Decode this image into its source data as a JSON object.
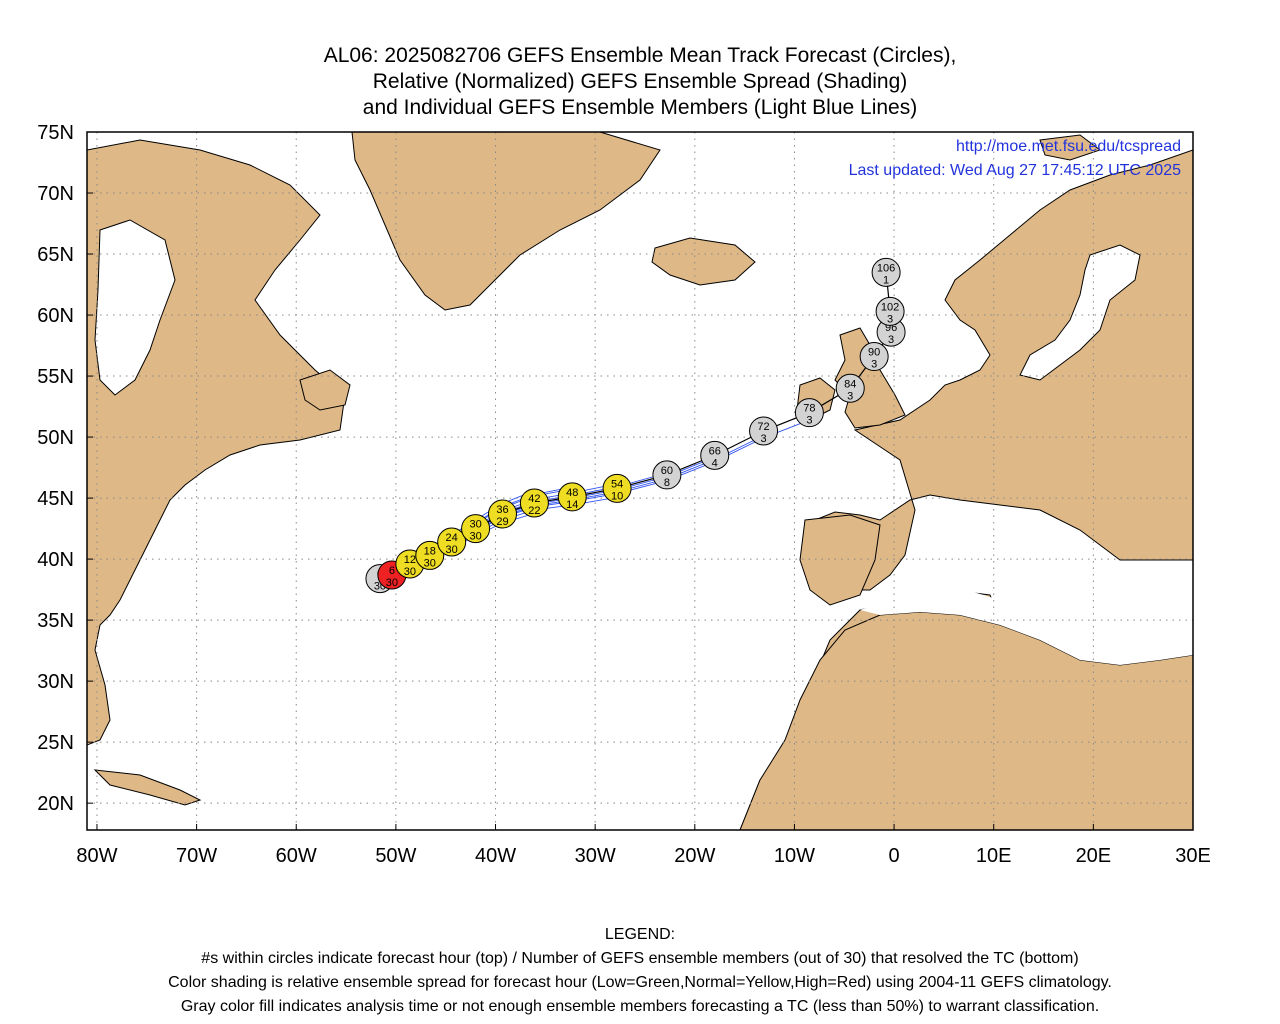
{
  "title": {
    "line1": "AL06: 2025082706 GEFS Ensemble Mean Track Forecast (Circles),",
    "line2": "Relative (Normalized) GEFS Ensemble Spread (Shading)",
    "line3": "and Individual GEFS Ensemble Members (Light Blue Lines)"
  },
  "info": {
    "url": "http://moe.met.fsu.edu/tcspread",
    "updated": "Last updated: Wed Aug 27 17:45:12 UTC 2025"
  },
  "axes": {
    "lat_labels": [
      "75N",
      "70N",
      "65N",
      "60N",
      "55N",
      "50N",
      "45N",
      "40N",
      "35N",
      "30N",
      "25N",
      "20N"
    ],
    "lon_labels": [
      "80W",
      "70W",
      "60W",
      "50W",
      "40W",
      "30W",
      "20W",
      "10W",
      "0",
      "10E",
      "20E",
      "30E"
    ],
    "lat_values": [
      75,
      70,
      65,
      60,
      55,
      50,
      45,
      40,
      35,
      30,
      25,
      20
    ],
    "lon_values": [
      -80,
      -70,
      -60,
      -50,
      -40,
      -30,
      -20,
      -10,
      0,
      10,
      20,
      30
    ]
  },
  "colors": {
    "land": "#deb887",
    "ocean": "#ffffff",
    "member_lines": "#3355ee",
    "mean_track": "#000000",
    "spread_high": "#ee2222",
    "spread_normal": "#eedd22",
    "insufficient": "#d3d3d3"
  },
  "chart_data": {
    "type": "track",
    "points": [
      {
        "hour": "0",
        "members": "30",
        "lat": 38.4,
        "lon": -51.6,
        "fill": "gray"
      },
      {
        "hour": "6",
        "members": "30",
        "lat": 38.7,
        "lon": -50.4,
        "fill": "red"
      },
      {
        "hour": "12",
        "members": "30",
        "lat": 39.6,
        "lon": -48.6,
        "fill": "yellow"
      },
      {
        "hour": "18",
        "members": "30",
        "lat": 40.3,
        "lon": -46.6,
        "fill": "yellow"
      },
      {
        "hour": "24",
        "members": "30",
        "lat": 41.4,
        "lon": -44.4,
        "fill": "yellow"
      },
      {
        "hour": "30",
        "members": "30",
        "lat": 42.5,
        "lon": -42.0,
        "fill": "yellow"
      },
      {
        "hour": "36",
        "members": "29",
        "lat": 43.7,
        "lon": -39.3,
        "fill": "yellow"
      },
      {
        "hour": "42",
        "members": "22",
        "lat": 44.6,
        "lon": -36.1,
        "fill": "yellow"
      },
      {
        "hour": "48",
        "members": "14",
        "lat": 45.1,
        "lon": -32.3,
        "fill": "yellow"
      },
      {
        "hour": "54",
        "members": "10",
        "lat": 45.8,
        "lon": -27.8,
        "fill": "yellow"
      },
      {
        "hour": "60",
        "members": "8",
        "lat": 46.9,
        "lon": -22.8,
        "fill": "gray"
      },
      {
        "hour": "66",
        "members": "4",
        "lat": 48.5,
        "lon": -18.0,
        "fill": "gray"
      },
      {
        "hour": "72",
        "members": "3",
        "lat": 50.5,
        "lon": -13.1,
        "fill": "gray"
      },
      {
        "hour": "78",
        "members": "3",
        "lat": 52.0,
        "lon": -8.5,
        "fill": "gray"
      },
      {
        "hour": "84",
        "members": "3",
        "lat": 54.0,
        "lon": -4.4,
        "fill": "gray"
      },
      {
        "hour": "90",
        "members": "3",
        "lat": 56.6,
        "lon": -2.0,
        "fill": "gray"
      },
      {
        "hour": "96",
        "members": "3",
        "lat": 58.6,
        "lon": -0.3,
        "fill": "gray"
      },
      {
        "hour": "102",
        "members": "3",
        "lat": 60.3,
        "lon": -0.4,
        "fill": "gray"
      },
      {
        "hour": "106",
        "members": "1",
        "lat": 63.5,
        "lon": -0.8,
        "fill": "gray"
      }
    ],
    "xlim": [
      -81,
      30
    ],
    "ylim": [
      17.8,
      75
    ]
  },
  "legend": {
    "heading": "LEGEND:",
    "line1": "#s within circles indicate forecast hour (top) / Number of GEFS ensemble members (out of 30) that resolved the TC (bottom)",
    "line2": "Color shading is relative ensemble spread for forecast hour (Low=Green,Normal=Yellow,High=Red) using 2004-11 GEFS climatology.",
    "line3": "Gray color fill indicates analysis time or not enough ensemble members forecasting a TC (less than 50%) to warrant classification."
  }
}
